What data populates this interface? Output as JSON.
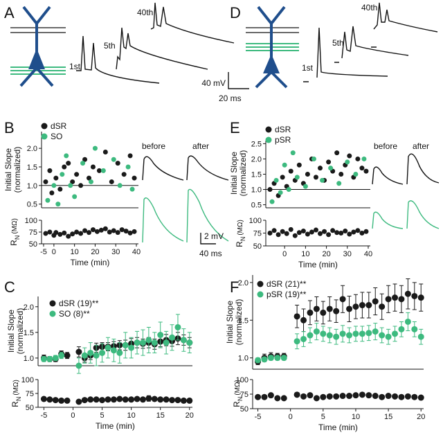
{
  "panels": [
    "A",
    "B",
    "C",
    "D",
    "E",
    "F"
  ],
  "panel_a": {
    "traces": [
      "1st",
      "5th",
      "40th"
    ],
    "scale_bar": {
      "voltage": "40 mV",
      "time": "20 ms"
    }
  },
  "panel_d": {
    "traces": [
      "1st",
      "5th",
      "40th"
    ]
  },
  "panel_b": {
    "traces": [
      "before",
      "after"
    ],
    "scale_bar": {
      "voltage": "2 mV",
      "time": "40 ms"
    }
  },
  "panel_e": {
    "traces": [
      "before",
      "after"
    ]
  },
  "chart_data": [
    {
      "type": "scatter",
      "ylabel": [
        "Initial Slope",
        "(normalized)"
      ],
      "xlim": [
        -6,
        41
      ],
      "ylim": [
        0.4,
        2.45
      ],
      "yticks": [
        0.5,
        {
          "value": 1,
          "label": "1.0"
        },
        1.5,
        {
          "value": 2,
          "label": "2.0"
        }
      ],
      "hline": 1,
      "series": [
        {
          "name": "dSR",
          "color": "#1a1a1a",
          "x": [
            -4,
            -2,
            -1,
            1,
            3,
            5,
            7,
            9,
            11,
            13,
            15,
            17,
            19,
            22,
            25,
            28,
            31,
            34,
            37,
            39
          ],
          "values": [
            1.1,
            1.4,
            0.8,
            1.2,
            0.9,
            1.5,
            1.6,
            1.1,
            1.3,
            1.0,
            1.7,
            1.2,
            1.5,
            1.4,
            1.9,
            1.1,
            1.6,
            1.3,
            1.8,
            1.2
          ]
        },
        {
          "name": "SO",
          "color": "#3dba7f",
          "x": [
            -3,
            0,
            2,
            4,
            6,
            8,
            10,
            14,
            18,
            20,
            24,
            29,
            32,
            36,
            38
          ],
          "values": [
            0.6,
            1.0,
            0.5,
            1.3,
            1.8,
            1.0,
            0.7,
            1.6,
            1.1,
            2.0,
            1.4,
            1.7,
            1.0,
            1.5,
            0.9
          ]
        }
      ]
    },
    {
      "type": "scatter",
      "ylabel": {
        "symbol": "R",
        "subscript": "N",
        "unit": "(MΩ)"
      },
      "xlabel": "Time (min)",
      "xlim": [
        -6,
        41
      ],
      "xticks": [
        -5,
        0,
        10,
        20,
        30,
        40
      ],
      "ylim": [
        50,
        100
      ],
      "yticks": [
        50,
        75,
        100
      ],
      "series": [
        {
          "color": "#1a1a1a",
          "x": [
            -4,
            -2,
            0,
            1,
            3,
            5,
            7,
            9,
            11,
            13,
            15,
            17,
            19,
            21,
            23,
            25,
            27,
            29,
            31,
            33,
            35,
            37,
            39
          ],
          "values": [
            72,
            75,
            68,
            74,
            70,
            73,
            66,
            71,
            75,
            72,
            78,
            74,
            80,
            76,
            79,
            82,
            75,
            78,
            74,
            80,
            77,
            73,
            76
          ]
        }
      ]
    },
    {
      "type": "scatter",
      "ylabel": [
        "Initial Slope",
        "(normalized)"
      ],
      "xlim": [
        -6,
        20.5
      ],
      "ylim": [
        0.85,
        2.2
      ],
      "yticks": [
        {
          "value": 1,
          "label": "1.0"
        },
        1.5,
        {
          "value": 2,
          "label": "2.0"
        }
      ],
      "x": [
        -5,
        -4,
        -3,
        -2,
        -1,
        1,
        2,
        3,
        4,
        5,
        6,
        7,
        8,
        9,
        10,
        11,
        12,
        13,
        14,
        15,
        16,
        17,
        18,
        19,
        20
      ],
      "series": [
        {
          "name": "dSR (19)**",
          "color": "#1a1a1a",
          "values": [
            1.0,
            0.98,
            0.98,
            1.08,
            1.05,
            1.12,
            1.0,
            1.05,
            1.2,
            1.22,
            1.22,
            1.23,
            1.25,
            1.25,
            1.28,
            1.3,
            1.28,
            1.3,
            1.27,
            1.32,
            1.35,
            1.33,
            1.38,
            1.35,
            1.3
          ],
          "errors": [
            0.06,
            0.05,
            0.05,
            0.06,
            0.06,
            0.1,
            0.08,
            0.08,
            0.09,
            0.08,
            0.08,
            0.09,
            0.09,
            0.1,
            0.1,
            0.1,
            0.09,
            0.1,
            0.1,
            0.1,
            0.11,
            0.1,
            0.12,
            0.1,
            0.1
          ]
        },
        {
          "name": "SO (8)**",
          "color": "#3dba7f",
          "values": [
            0.98,
            0.98,
            1.0,
            1.05,
            null,
            0.85,
            1.05,
            1.1,
            1.05,
            1.1,
            1.2,
            1.15,
            1.1,
            1.25,
            1.2,
            1.3,
            1.3,
            1.35,
            1.3,
            1.45,
            1.3,
            1.4,
            1.6,
            1.35,
            1.3
          ],
          "errors": [
            0.05,
            0.05,
            0.05,
            0.06,
            null,
            0.15,
            0.15,
            0.2,
            0.2,
            0.18,
            0.2,
            0.22,
            0.2,
            0.25,
            0.2,
            0.22,
            0.25,
            0.25,
            0.2,
            0.25,
            0.22,
            0.25,
            0.25,
            0.22,
            0.2
          ]
        }
      ]
    },
    {
      "type": "scatter",
      "ylabel": {
        "symbol": "R",
        "subscript": "N",
        "unit": "(MΩ)"
      },
      "xlabel": "Time (min)",
      "xlim": [
        -6,
        20.5
      ],
      "xticks": [
        -5,
        0,
        5,
        10,
        15,
        20
      ],
      "ylim": [
        50,
        100
      ],
      "yticks": [
        50,
        75,
        100
      ],
      "x": [
        -5,
        -4,
        -3,
        -2,
        -1,
        1,
        2,
        3,
        4,
        5,
        6,
        7,
        8,
        9,
        10,
        11,
        12,
        13,
        14,
        15,
        16,
        17,
        18,
        19,
        20
      ],
      "series": [
        {
          "color": "#1a1a1a",
          "values": [
            65,
            64,
            63,
            62,
            62,
            60,
            63,
            64,
            64,
            63,
            64,
            64,
            65,
            64,
            64,
            65,
            64,
            66,
            65,
            64,
            64,
            63,
            63,
            62,
            62
          ],
          "errors": [
            2,
            2,
            2,
            2,
            2,
            3,
            3,
            3,
            3,
            3,
            3,
            3,
            3,
            3,
            3,
            3,
            3,
            5,
            3,
            3,
            3,
            3,
            3,
            2,
            2
          ]
        }
      ]
    },
    {
      "type": "scatter",
      "ylabel": [
        "Initial Slope",
        "(normalized)"
      ],
      "xlim": [
        -9,
        41
      ],
      "ylim": [
        0.4,
        2.6
      ],
      "yticks": [
        0.5,
        {
          "value": 1,
          "label": "1.0"
        },
        1.5,
        {
          "value": 2,
          "label": "2.0"
        },
        2.5
      ],
      "hline": 1,
      "series": [
        {
          "name": "dSR",
          "color": "#1a1a1a",
          "x": [
            -7,
            -5,
            -3,
            -1,
            1,
            3,
            5,
            7,
            9,
            11,
            13,
            15,
            17,
            19,
            21,
            23,
            25,
            27,
            29,
            31,
            33,
            35,
            37,
            39
          ],
          "values": [
            1.0,
            1.2,
            0.8,
            1.4,
            1.1,
            1.6,
            1.3,
            1.8,
            1.2,
            1.5,
            2.0,
            1.4,
            1.7,
            1.3,
            1.9,
            1.6,
            2.2,
            1.5,
            1.8,
            2.1,
            1.4,
            2.0,
            1.7,
            1.6
          ]
        },
        {
          "name": "pSR",
          "color": "#3dba7f",
          "x": [
            -6,
            -4,
            -2,
            0,
            2,
            4,
            6,
            10,
            14,
            18,
            22,
            26,
            30,
            34,
            38
          ],
          "values": [
            0.6,
            1.3,
            0.9,
            1.8,
            1.0,
            2.2,
            1.4,
            1.1,
            2.0,
            1.3,
            1.7,
            1.2,
            1.9,
            1.5,
            2.0
          ]
        }
      ]
    },
    {
      "type": "scatter",
      "ylabel": {
        "symbol": "R",
        "subscript": "N",
        "unit": "(MΩ)"
      },
      "xlabel": "Time (min)",
      "xlim": [
        -9,
        41
      ],
      "xticks": [
        0,
        10,
        20,
        30,
        40
      ],
      "ylim": [
        50,
        100
      ],
      "yticks": [
        50,
        75,
        100
      ],
      "series": [
        {
          "color": "#1a1a1a",
          "x": [
            -7,
            -5,
            -3,
            -1,
            1,
            3,
            5,
            7,
            9,
            11,
            13,
            15,
            17,
            19,
            21,
            23,
            25,
            27,
            29,
            31,
            33,
            35,
            37,
            39
          ],
          "values": [
            75,
            80,
            72,
            78,
            74,
            82,
            70,
            76,
            79,
            73,
            77,
            81,
            74,
            78,
            72,
            80,
            76,
            75,
            79,
            73,
            77,
            80,
            75,
            78
          ]
        }
      ]
    },
    {
      "type": "scatter",
      "ylabel": [
        "Initial Slope",
        "(normalized)"
      ],
      "xlim": [
        -5.8,
        20.4
      ],
      "ylim": [
        0.85,
        2.1
      ],
      "yticks": [
        {
          "value": 1,
          "label": "1.0"
        },
        1.5,
        {
          "value": 2,
          "label": "2.0"
        }
      ],
      "x": [
        -5,
        -4,
        -3,
        -2,
        -1,
        1,
        2,
        3,
        4,
        5,
        6,
        7,
        8,
        9,
        10,
        11,
        12,
        13,
        14,
        15,
        16,
        17,
        18,
        19,
        20
      ],
      "series": [
        {
          "name": "dSR (21)**",
          "color": "#1a1a1a",
          "values": [
            0.95,
            1.0,
            1.02,
            1.02,
            1.02,
            1.55,
            1.5,
            1.6,
            1.65,
            1.6,
            1.65,
            1.62,
            1.78,
            1.65,
            1.68,
            1.7,
            1.7,
            1.75,
            1.68,
            1.78,
            1.8,
            1.78,
            1.85,
            1.82,
            1.8
          ],
          "errors": [
            0.04,
            0.05,
            0.05,
            0.04,
            0.04,
            0.15,
            0.15,
            0.16,
            0.16,
            0.15,
            0.16,
            0.15,
            0.18,
            0.17,
            0.16,
            0.17,
            0.17,
            0.18,
            0.17,
            0.18,
            0.18,
            0.18,
            0.2,
            0.18,
            0.18
          ]
        },
        {
          "name": "pSR (19)**",
          "color": "#3dba7f",
          "values": [
            0.97,
            0.98,
            1.0,
            1.0,
            1.0,
            1.22,
            1.25,
            1.3,
            1.35,
            1.32,
            1.3,
            1.28,
            1.32,
            1.3,
            1.32,
            1.32,
            1.33,
            1.35,
            1.3,
            1.28,
            1.32,
            1.38,
            1.48,
            1.38,
            1.28
          ],
          "errors": [
            0.03,
            0.03,
            0.03,
            0.03,
            0.03,
            0.1,
            0.1,
            0.1,
            0.11,
            0.1,
            0.1,
            0.1,
            0.11,
            0.1,
            0.1,
            0.1,
            0.1,
            0.11,
            0.1,
            0.1,
            0.1,
            0.1,
            0.12,
            0.1,
            0.1
          ]
        }
      ]
    },
    {
      "type": "scatter",
      "ylabel": {
        "symbol": "R",
        "subscript": "N",
        "unit": "(MΩ)"
      },
      "xlabel": "Time (min)",
      "xlim": [
        -5.8,
        20.4
      ],
      "xticks": [
        -5,
        0,
        5,
        10,
        15,
        20
      ],
      "ylim": [
        50,
        100
      ],
      "yticks": [
        50,
        75,
        100
      ],
      "x": [
        -5,
        -4,
        -3,
        -2,
        -1,
        1,
        2,
        3,
        4,
        5,
        6,
        7,
        8,
        9,
        10,
        11,
        12,
        13,
        14,
        15,
        16,
        17,
        18,
        19,
        20
      ],
      "series": [
        {
          "color": "#1a1a1a",
          "values": [
            70,
            70,
            73,
            68,
            68,
            74,
            71,
            73,
            68,
            70,
            71,
            71,
            72,
            72,
            73,
            74,
            73,
            72,
            70,
            72,
            71,
            70,
            71,
            70,
            69
          ],
          "errors": [
            3,
            3,
            3,
            3,
            3,
            3,
            3,
            3,
            3,
            3,
            3,
            3,
            3,
            3,
            3,
            3,
            3,
            3,
            3,
            3,
            3,
            3,
            3,
            3,
            3
          ]
        }
      ]
    }
  ]
}
